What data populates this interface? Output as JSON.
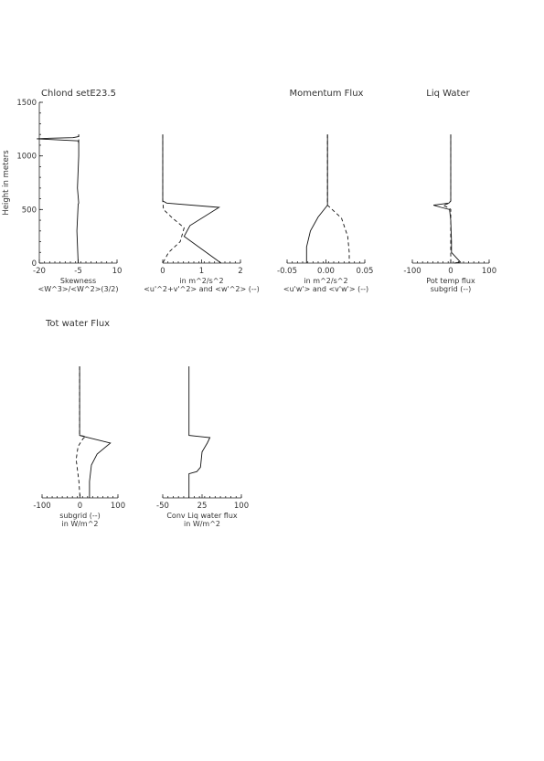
{
  "ylabel": "Height in meters",
  "chart_data": [
    {
      "type": "line",
      "title": "Chlond setE23.5",
      "xlabel": [
        "Skewness",
        "<W^3>/<W^2>(3/2)"
      ],
      "xlim": [
        -20,
        10
      ],
      "ylim": [
        0,
        1500
      ],
      "xticks": [
        -20,
        -5,
        10
      ],
      "xtick_labels": [
        "-20",
        "-5",
        "10"
      ],
      "yticks": [
        0,
        500,
        1000,
        1500
      ],
      "ytick_labels": [
        "0",
        "500",
        "1000",
        "1500"
      ],
      "series": [
        {
          "style": "solid",
          "points": [
            [
              -5,
              0
            ],
            [
              -5.5,
              300
            ],
            [
              -5,
              550
            ],
            [
              -4.8,
              560
            ],
            [
              -5.3,
              700
            ],
            [
              -4.8,
              1000
            ],
            [
              -4.8,
              1120
            ],
            [
              -5,
              1140
            ],
            [
              -21,
              1160
            ],
            [
              -16,
              1165
            ],
            [
              -7,
              1170
            ],
            [
              -4.8,
              1180
            ],
            [
              -4.8,
              1200
            ]
          ]
        },
        {
          "style": "dashed",
          "points": [
            [
              -4.8,
              1120
            ],
            [
              -4.8,
              1200
            ]
          ]
        }
      ]
    },
    {
      "type": "line",
      "title": "",
      "xlabel": [
        "in m^2/s^2",
        "<u'^2+v'^2> and <w'^2> (--)"
      ],
      "xlim": [
        0,
        2
      ],
      "ylim": [
        0,
        1500
      ],
      "xticks": [
        0,
        1,
        2
      ],
      "xtick_labels": [
        "0",
        "1",
        "2"
      ],
      "series": [
        {
          "style": "solid",
          "points": [
            [
              0,
              1200
            ],
            [
              0,
              580
            ],
            [
              0.1,
              560
            ],
            [
              1.45,
              520
            ],
            [
              0.7,
              350
            ],
            [
              0.55,
              250
            ],
            [
              1.5,
              0
            ]
          ]
        },
        {
          "style": "dashed",
          "points": [
            [
              0,
              1200
            ],
            [
              0,
              580
            ],
            [
              0.02,
              500
            ],
            [
              0.25,
              420
            ],
            [
              0.55,
              330
            ],
            [
              0.45,
              200
            ],
            [
              0.15,
              100
            ],
            [
              0,
              0
            ]
          ]
        }
      ]
    },
    {
      "type": "line",
      "title": "Momentum Flux",
      "xlabel": [
        "in m^2/s^2",
        "<u'w'> and <v'w'> (--)"
      ],
      "xlim": [
        -0.05,
        0.05
      ],
      "ylim": [
        0,
        1500
      ],
      "xticks": [
        -0.05,
        0,
        0.05
      ],
      "xtick_labels": [
        "-0.05",
        "0.00",
        "0.05"
      ],
      "series": [
        {
          "style": "solid",
          "points": [
            [
              0.002,
              1200
            ],
            [
              0.002,
              540
            ],
            [
              -0.01,
              430
            ],
            [
              -0.02,
              300
            ],
            [
              -0.025,
              150
            ],
            [
              -0.025,
              0
            ]
          ]
        },
        {
          "style": "dashed",
          "points": [
            [
              0.002,
              1200
            ],
            [
              0.002,
              540
            ],
            [
              0.02,
              420
            ],
            [
              0.028,
              250
            ],
            [
              0.03,
              100
            ],
            [
              0.03,
              0
            ]
          ]
        }
      ]
    },
    {
      "type": "line",
      "title": "Liq Water",
      "xlabel": [
        "Pot temp flux",
        "subgrid (--)"
      ],
      "xlim": [
        -100,
        100
      ],
      "ylim": [
        0,
        1500
      ],
      "xticks": [
        -100,
        0,
        100
      ],
      "xtick_labels": [
        "-100",
        "0",
        "100"
      ],
      "series": [
        {
          "style": "solid",
          "points": [
            [
              0,
              1200
            ],
            [
              0,
              580
            ],
            [
              -5,
              560
            ],
            [
              -45,
              540
            ],
            [
              -25,
              520
            ],
            [
              -3,
              500
            ],
            [
              0,
              400
            ],
            [
              2,
              200
            ],
            [
              2,
              100
            ],
            [
              25,
              10
            ],
            [
              10,
              0
            ]
          ]
        },
        {
          "style": "dashed",
          "points": [
            [
              0,
              1200
            ],
            [
              0,
              580
            ],
            [
              -3,
              560
            ],
            [
              -20,
              540
            ],
            [
              -8,
              520
            ],
            [
              0,
              500
            ],
            [
              0,
              0
            ]
          ]
        }
      ]
    },
    {
      "type": "line",
      "title": "Tot water Flux",
      "xlabel": [
        "subgrid (--)",
        "in W/m^2"
      ],
      "xlim": [
        -100,
        100
      ],
      "ylim": [
        0,
        1500
      ],
      "xticks": [
        -100,
        0,
        100
      ],
      "xtick_labels": [
        "-100",
        "0",
        "100"
      ],
      "series": [
        {
          "style": "solid",
          "points": [
            [
              -1,
              1200
            ],
            [
              -1,
              570
            ],
            [
              10,
              560
            ],
            [
              80,
              500
            ],
            [
              45,
              400
            ],
            [
              30,
              300
            ],
            [
              25,
              150
            ],
            [
              25,
              0
            ]
          ]
        },
        {
          "style": "dashed",
          "points": [
            [
              -1,
              1200
            ],
            [
              -1,
              570
            ],
            [
              15,
              560
            ],
            [
              8,
              540
            ],
            [
              -5,
              470
            ],
            [
              -10,
              350
            ],
            [
              -3,
              150
            ],
            [
              0,
              0
            ]
          ]
        }
      ]
    },
    {
      "type": "line",
      "title": "",
      "xlabel": [
        "Conv Liq water flux",
        "in W/m^2"
      ],
      "xlim": [
        -50,
        100
      ],
      "ylim": [
        0,
        1500
      ],
      "xticks": [
        -50,
        25,
        100
      ],
      "xtick_labels": [
        "-50",
        "25",
        "100"
      ],
      "series": [
        {
          "style": "solid",
          "points": [
            [
              0,
              1200
            ],
            [
              0,
              570
            ],
            [
              20,
              560
            ],
            [
              40,
              550
            ],
            [
              35,
              500
            ],
            [
              25,
              420
            ],
            [
              22,
              280
            ],
            [
              15,
              240
            ],
            [
              0,
              220
            ],
            [
              0,
              0
            ]
          ]
        }
      ]
    }
  ]
}
